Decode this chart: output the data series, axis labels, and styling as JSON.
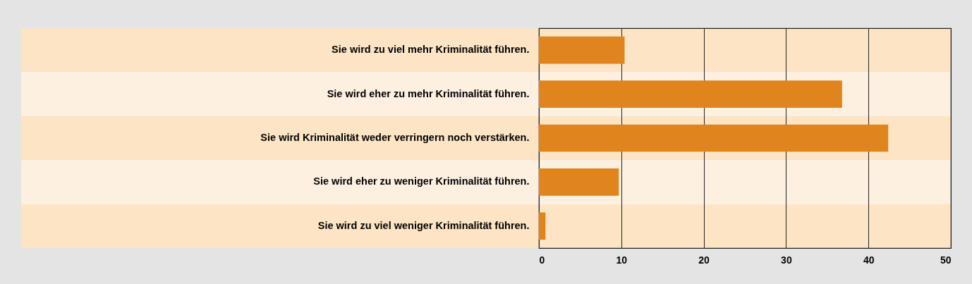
{
  "chart_data": {
    "type": "bar",
    "orientation": "horizontal",
    "categories": [
      "Sie wird zu viel mehr Kriminalität führen.",
      "Sie wird eher zu mehr Kriminalität führen.",
      "Sie wird Kriminalität weder verringern noch verstärken.",
      "Sie wird eher zu weniger Kriminalität führen.",
      "Sie wird zu viel weniger Kriminalität führen."
    ],
    "values": [
      10.4,
      36.8,
      42.4,
      9.7,
      0.8
    ],
    "color": "#e0841e",
    "xlim": [
      0,
      50
    ],
    "xticks": [
      0,
      10,
      20,
      30,
      40,
      50
    ],
    "grid": "x"
  }
}
